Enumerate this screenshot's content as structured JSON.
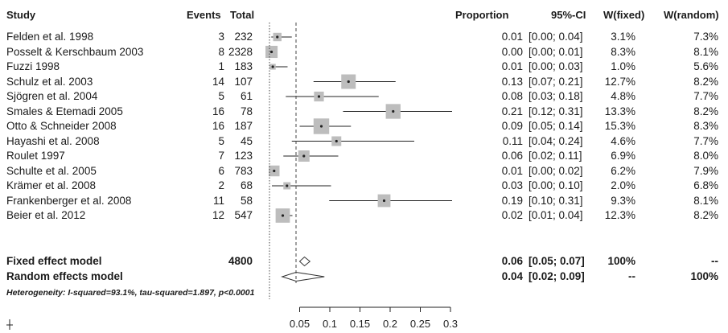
{
  "chart_data": {
    "type": "forest",
    "headers": {
      "study": "Study",
      "events": "Events",
      "total": "Total",
      "proportion": "Proportion",
      "ci": "95%-CI",
      "wfixed": "W(fixed)",
      "wrandom": "W(random)"
    },
    "studies": [
      {
        "name": "Felden  et al.  1998",
        "events": "3",
        "total": "232",
        "prop": "0.01",
        "ci": "[0.00; 0.04]",
        "wfixed": "3.1%",
        "wrandom": "7.3%",
        "p": 0.013,
        "lo": 0.003,
        "hi": 0.037,
        "w": 3.1
      },
      {
        "name": "Posselt  & Kerschbaum  2003",
        "events": "8",
        "total": "2328",
        "prop": "0.00",
        "ci": "[0.00; 0.01]",
        "wfixed": "8.3%",
        "wrandom": "8.1%",
        "p": 0.0034,
        "lo": 0.0015,
        "hi": 0.0068,
        "w": 8.3
      },
      {
        "name": "Fuzzi  1998",
        "events": "1",
        "total": "183",
        "prop": "0.01",
        "ci": "[0.00; 0.03]",
        "wfixed": "1.0%",
        "wrandom": "5.6%",
        "p": 0.0055,
        "lo": 0.0001,
        "hi": 0.03,
        "w": 1.0
      },
      {
        "name": "Schulz et al.  2003",
        "events": "14",
        "total": "107",
        "prop": "0.13",
        "ci": "[0.07; 0.21]",
        "wfixed": "12.7%",
        "wrandom": "8.2%",
        "p": 0.131,
        "lo": 0.073,
        "hi": 0.209,
        "w": 12.7
      },
      {
        "name": "Sjögren et al.  2004",
        "events": "5",
        "total": "61",
        "prop": "0.08",
        "ci": "[0.03; 0.18]",
        "wfixed": "4.8%",
        "wrandom": "7.7%",
        "p": 0.082,
        "lo": 0.027,
        "hi": 0.181,
        "w": 4.8
      },
      {
        "name": "Smales & Etemadi  2005",
        "events": "16",
        "total": "78",
        "prop": "0.21",
        "ci": "[0.12; 0.31]",
        "wfixed": "13.3%",
        "wrandom": "8.2%",
        "p": 0.205,
        "lo": 0.122,
        "hi": 0.311,
        "w": 13.3
      },
      {
        "name": "Otto & Schneider  2008",
        "events": "16",
        "total": "187",
        "prop": "0.09",
        "ci": "[0.05; 0.14]",
        "wfixed": "15.3%",
        "wrandom": "8.3%",
        "p": 0.086,
        "lo": 0.05,
        "hi": 0.135,
        "w": 15.3
      },
      {
        "name": "Hayashi et al.  2008",
        "events": "5",
        "total": "45",
        "prop": "0.11",
        "ci": "[0.04; 0.24]",
        "wfixed": "4.6%",
        "wrandom": "7.7%",
        "p": 0.111,
        "lo": 0.037,
        "hi": 0.24,
        "w": 4.6
      },
      {
        "name": "Roulet  1997",
        "events": "7",
        "total": "123",
        "prop": "0.06",
        "ci": "[0.02; 0.11]",
        "wfixed": "6.9%",
        "wrandom": "8.0%",
        "p": 0.057,
        "lo": 0.023,
        "hi": 0.114,
        "w": 6.9
      },
      {
        "name": "Schulte et al.  2005",
        "events": "6",
        "total": "783",
        "prop": "0.01",
        "ci": "[0.00; 0.02]",
        "wfixed": "6.2%",
        "wrandom": "7.9%",
        "p": 0.0077,
        "lo": 0.0028,
        "hi": 0.0166,
        "w": 6.2
      },
      {
        "name": "Krämer et al.  2008",
        "events": "2",
        "total": "68",
        "prop": "0.03",
        "ci": "[0.00; 0.10]",
        "wfixed": "2.0%",
        "wrandom": "6.8%",
        "p": 0.029,
        "lo": 0.004,
        "hi": 0.102,
        "w": 2.0
      },
      {
        "name": "Frankenberger et al.  2008",
        "events": "11",
        "total": "58",
        "prop": "0.19",
        "ci": "[0.10; 0.31]",
        "wfixed": "9.3%",
        "wrandom": "8.1%",
        "p": 0.19,
        "lo": 0.099,
        "hi": 0.314,
        "w": 9.3
      },
      {
        "name": "Beier et al.  2012",
        "events": "12",
        "total": "547",
        "prop": "0.02",
        "ci": "[0.01; 0.04]",
        "wfixed": "12.3%",
        "wrandom": "8.2%",
        "p": 0.022,
        "lo": 0.011,
        "hi": 0.038,
        "w": 12.3
      }
    ],
    "fixed": {
      "name": "Fixed effect model",
      "total": "4800",
      "prop": "0.06",
      "ci": "[0.05; 0.07]",
      "wfixed": "100%",
      "wrandom": "--",
      "p": 0.058,
      "lo": 0.05,
      "hi": 0.067
    },
    "random": {
      "name": "Random effects model",
      "prop": "0.04",
      "ci": "[0.02; 0.09]",
      "wfixed": "--",
      "wrandom": "100%",
      "p": 0.044,
      "lo": 0.021,
      "hi": 0.091
    },
    "heterogeneity": "Heterogeneity: I-squared=93.1%, tau-squared=1.897, p<0.0001",
    "x_ticks": [
      "0.05",
      "0.1",
      "0.15",
      "0.2",
      "0.25",
      "0.3"
    ],
    "xlim": [
      0,
      0.3
    ],
    "ref_line": 0.0
  }
}
